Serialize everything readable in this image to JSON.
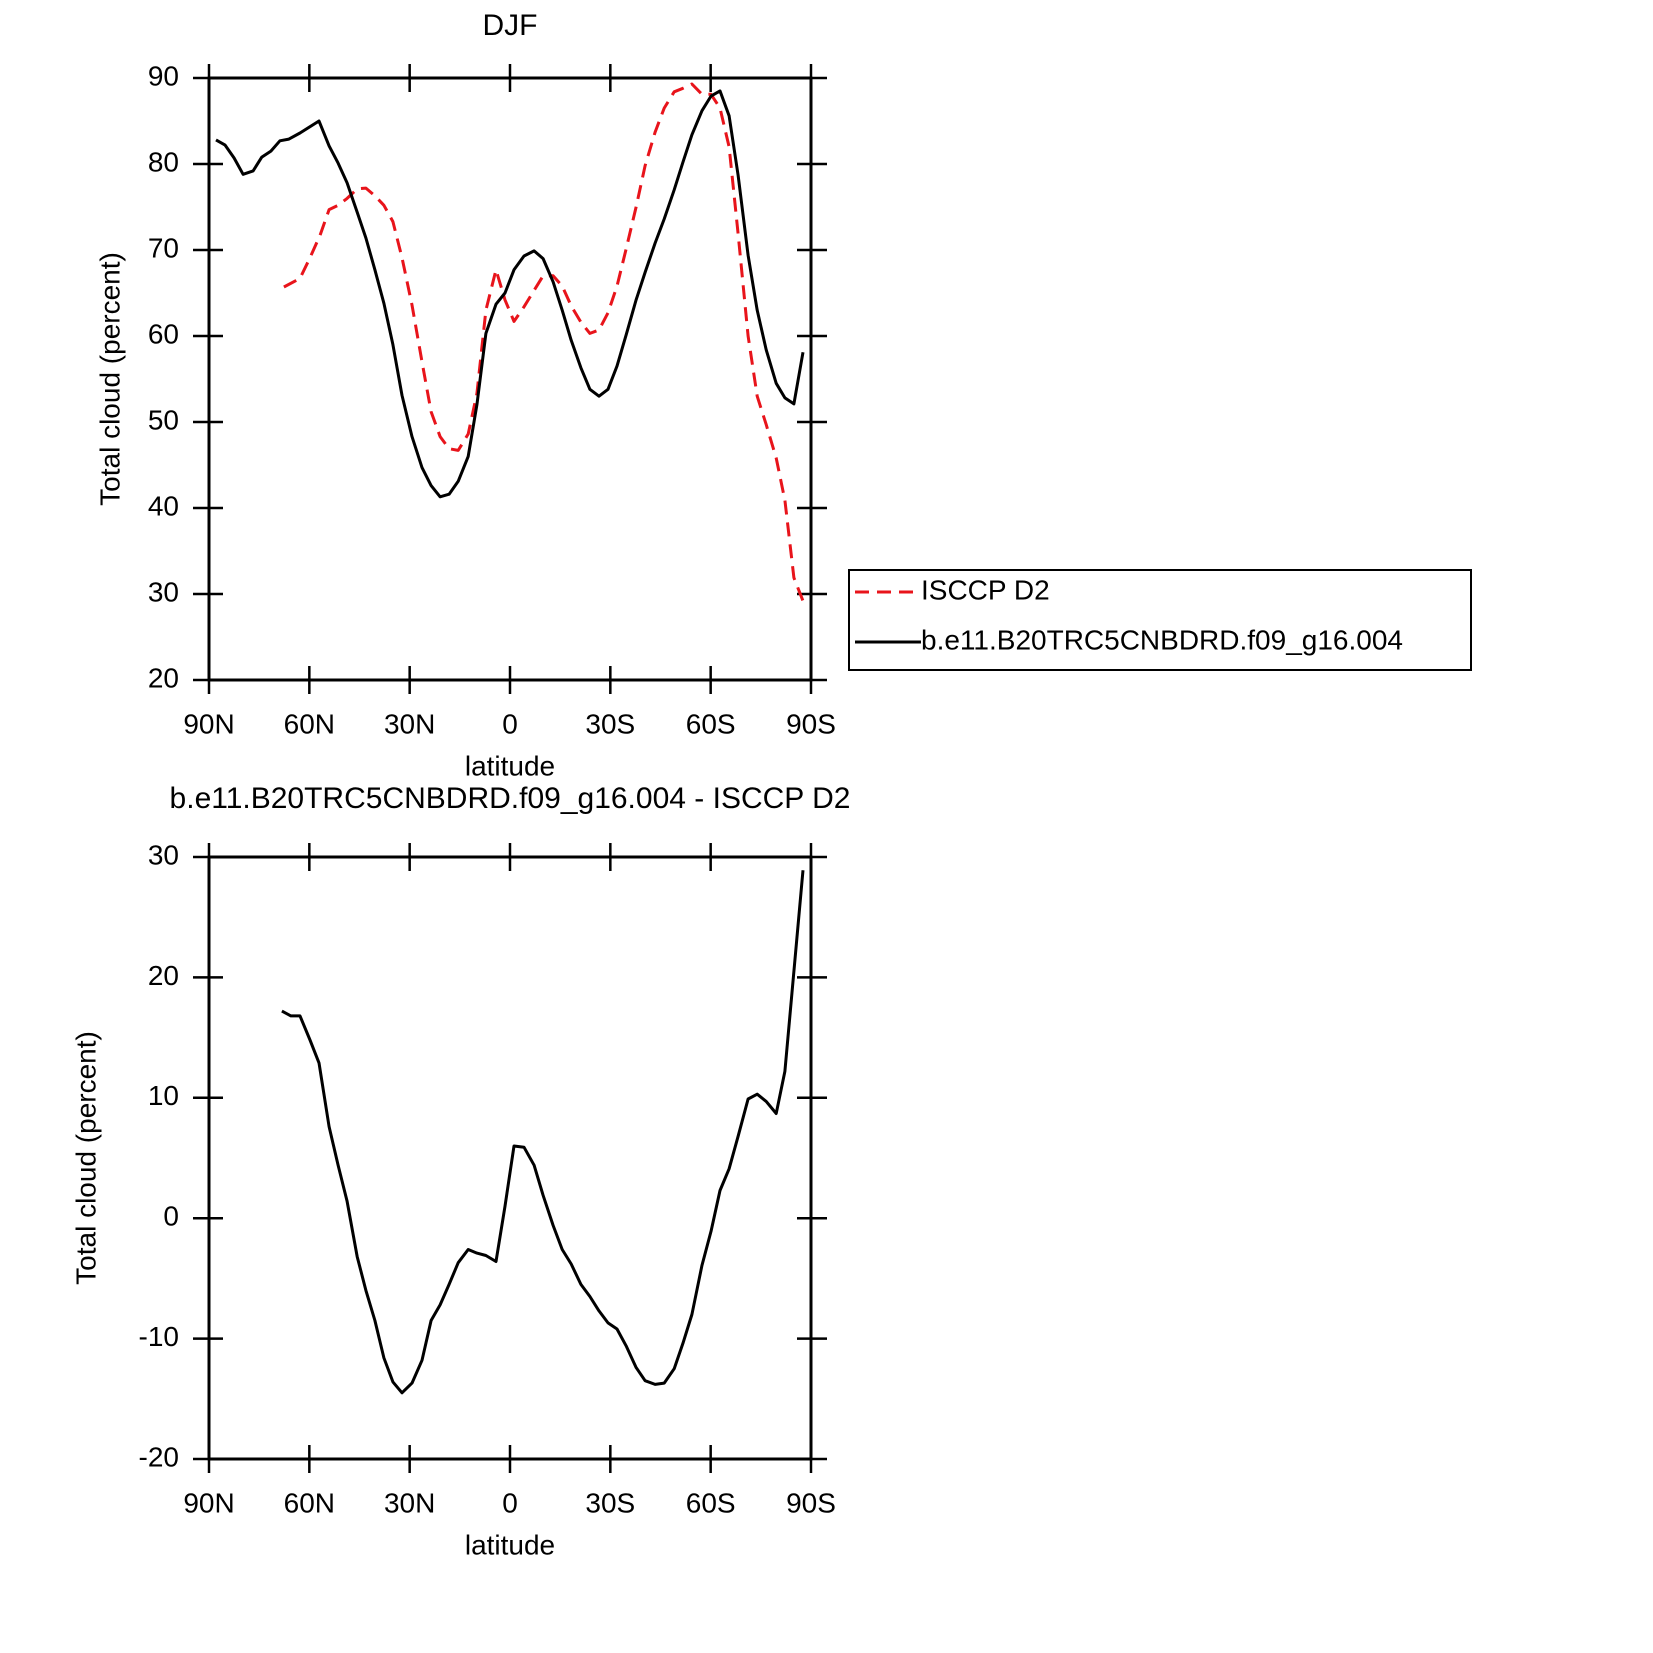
{
  "chart_data": [
    {
      "type": "line",
      "title": "DJF",
      "xlabel": "latitude",
      "ylabel": "Total cloud (percent)",
      "xlim": [
        90,
        -90
      ],
      "xticks": [
        {
          "value": 90,
          "label": "90N"
        },
        {
          "value": 60,
          "label": "60N"
        },
        {
          "value": 30,
          "label": "30N"
        },
        0,
        {
          "value": -30,
          "label": "30S"
        },
        {
          "value": -60,
          "label": "60S"
        },
        {
          "value": -90,
          "label": "90S"
        }
      ],
      "ylim": [
        20,
        90
      ],
      "yticks": [
        20,
        30,
        40,
        50,
        60,
        70,
        80,
        90
      ],
      "legend": "right",
      "series": [
        {
          "name": "ISCCP D2",
          "color": "#e8141b",
          "linestyle": "dashed",
          "x": [
            67.6,
            62.8,
            59.8,
            56.8,
            54.1,
            51.4,
            48.7,
            45.7,
            43.1,
            40.4,
            37.7,
            35.0,
            32.3,
            29.3,
            26.3,
            23.6,
            20.9,
            18.2,
            15.5,
            12.5,
            9.9,
            7.2,
            4.2,
            1.5,
            -1.2,
            -4.2,
            -7.2,
            -9.9,
            -12.9,
            -15.6,
            -18.3,
            -21.2,
            -23.9,
            -26.6,
            -29.3,
            -32.0,
            -34.7,
            -37.7,
            -40.4,
            -43.4,
            -46.1,
            -49.1,
            -51.7,
            -54.4,
            -57.4,
            -60.1,
            -62.8,
            -65.5,
            -68.2,
            -71.2,
            -73.9,
            -76.6,
            -79.6,
            -82.2,
            -84.9,
            -87.6
          ],
          "values": [
            65.7,
            66.7,
            69.1,
            71.7,
            74.7,
            75.2,
            76.0,
            77.1,
            77.2,
            76.3,
            75.2,
            73.3,
            69.1,
            63.6,
            57.0,
            51.2,
            48.3,
            46.9,
            46.7,
            48.6,
            53.3,
            63.0,
            67.7,
            64.2,
            61.7,
            63.4,
            65.3,
            67.0,
            67.0,
            65.8,
            63.5,
            61.6,
            60.3,
            60.7,
            62.7,
            65.8,
            70.1,
            75.0,
            79.8,
            83.7,
            86.5,
            88.4,
            88.8,
            89.3,
            88.1,
            88.1,
            86.5,
            82.0,
            71.9,
            60.0,
            53.0,
            49.7,
            45.8,
            40.9,
            31.9,
            29.2
          ]
        },
        {
          "name": "b.e11.B20TRC5CNBDRD.f09_g16.004",
          "color": "#000000",
          "linestyle": "solid",
          "x": [
            87.9,
            85.2,
            82.5,
            79.8,
            76.8,
            74.2,
            71.5,
            68.8,
            66.1,
            62.8,
            57.1,
            54.1,
            51.4,
            48.7,
            45.7,
            43.1,
            40.4,
            37.7,
            35.0,
            32.3,
            29.3,
            26.3,
            23.6,
            20.9,
            18.2,
            15.5,
            12.5,
            9.9,
            7.2,
            4.2,
            1.5,
            -1.2,
            -4.2,
            -7.2,
            -9.9,
            -12.9,
            -15.6,
            -18.3,
            -21.2,
            -23.9,
            -26.6,
            -29.3,
            -32.0,
            -34.7,
            -37.7,
            -40.4,
            -43.4,
            -46.1,
            -49.1,
            -51.7,
            -54.4,
            -57.4,
            -60.1,
            -62.8,
            -65.5,
            -68.2,
            -71.2,
            -73.9,
            -76.6,
            -79.6,
            -82.2,
            -84.9,
            -87.6
          ],
          "values": [
            82.8,
            82.2,
            80.7,
            78.8,
            79.2,
            80.8,
            81.5,
            82.7,
            82.9,
            83.6,
            85.0,
            82.1,
            80.1,
            77.8,
            74.4,
            71.4,
            67.7,
            63.8,
            59.0,
            53.1,
            48.3,
            44.7,
            42.6,
            41.3,
            41.6,
            43.1,
            46.0,
            52.0,
            60.3,
            63.7,
            65.0,
            67.7,
            69.3,
            69.9,
            69.0,
            66.3,
            63.0,
            59.5,
            56.3,
            53.8,
            53.0,
            53.8,
            56.5,
            60.1,
            64.2,
            67.4,
            70.8,
            73.6,
            77.0,
            80.2,
            83.4,
            86.2,
            87.9,
            88.5,
            85.6,
            78.7,
            69.4,
            63.0,
            58.4,
            54.5,
            52.8,
            52.1,
            58.1
          ]
        }
      ]
    },
    {
      "type": "line",
      "title": "b.e11.B20TRC5CNBDRD.f09_g16.004 - ISCCP D2",
      "xlabel": "latitude",
      "ylabel": "Total cloud (percent)",
      "xlim": [
        90,
        -90
      ],
      "xticks": [
        {
          "value": 90,
          "label": "90N"
        },
        {
          "value": 60,
          "label": "60N"
        },
        {
          "value": 30,
          "label": "30N"
        },
        0,
        {
          "value": -30,
          "label": "30S"
        },
        {
          "value": -60,
          "label": "60S"
        },
        {
          "value": -90,
          "label": "90S"
        }
      ],
      "ylim": [
        -20,
        30
      ],
      "yticks": [
        -20,
        -10,
        0,
        10,
        20,
        30
      ],
      "series": [
        {
          "color": "#000000",
          "linestyle": "solid",
          "x": [
            68.2,
            65.5,
            62.8,
            59.8,
            57.1,
            54.1,
            51.4,
            48.7,
            45.7,
            43.1,
            40.4,
            37.7,
            35.0,
            32.3,
            29.3,
            26.3,
            23.6,
            20.9,
            18.2,
            15.5,
            12.5,
            9.9,
            7.2,
            4.2,
            1.5,
            -1.2,
            -4.2,
            -7.2,
            -9.9,
            -12.9,
            -15.6,
            -18.3,
            -21.2,
            -23.9,
            -26.6,
            -29.3,
            -32.0,
            -34.7,
            -37.7,
            -40.4,
            -43.4,
            -46.1,
            -49.1,
            -51.7,
            -54.4,
            -57.4,
            -60.1,
            -62.8,
            -65.5,
            -68.2,
            -71.2,
            -73.9,
            -76.6,
            -79.6,
            -82.2,
            -84.9,
            -87.6
          ],
          "values": [
            17.2,
            16.8,
            16.8,
            14.8,
            12.9,
            7.6,
            4.4,
            1.4,
            -3.2,
            -6.0,
            -8.5,
            -11.6,
            -13.6,
            -14.5,
            -13.7,
            -11.8,
            -8.5,
            -7.2,
            -5.5,
            -3.7,
            -2.6,
            -2.9,
            -3.1,
            -3.6,
            1.0,
            6.0,
            5.9,
            4.4,
            1.9,
            -0.6,
            -2.6,
            -3.8,
            -5.5,
            -6.5,
            -7.7,
            -8.7,
            -9.2,
            -10.6,
            -12.4,
            -13.5,
            -13.8,
            -13.7,
            -12.5,
            -10.4,
            -8.0,
            -3.9,
            -1.1,
            2.3,
            4.1,
            6.8,
            9.9,
            10.3,
            9.7,
            8.7,
            12.2,
            20.5,
            28.9
          ]
        }
      ]
    }
  ]
}
